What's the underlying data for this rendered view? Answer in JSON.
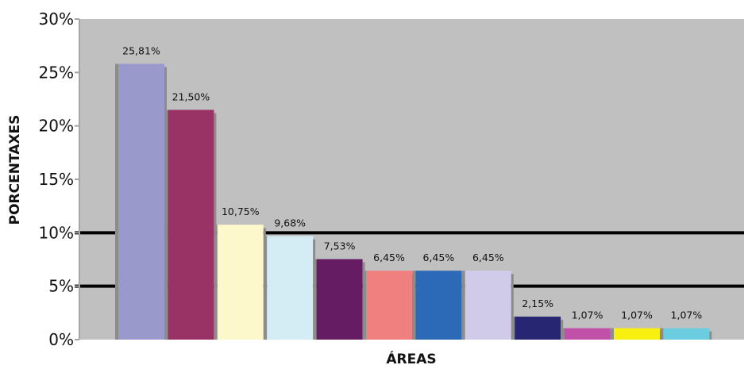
{
  "chart_data": {
    "type": "bar",
    "title": "",
    "xlabel": "ÁREAS",
    "ylabel": "PORCENTAXES",
    "ylim": [
      0,
      30
    ],
    "yticks": [
      0,
      5,
      10,
      15,
      20,
      25,
      30
    ],
    "ytick_labels": [
      "0%",
      "5%",
      "10%",
      "15%",
      "20%",
      "25%",
      "30%"
    ],
    "highlight_lines": [
      5,
      10
    ],
    "background_color": "#c0c0c0",
    "bar_shadow_color": "#8c8c8c",
    "highlight_line_color": "#000000",
    "bars": [
      {
        "value": 25.81,
        "label": "25,81%",
        "color": "#9999cc"
      },
      {
        "value": 21.5,
        "label": "21,50%",
        "color": "#993366"
      },
      {
        "value": 10.75,
        "label": "10,75%",
        "color": "#fdf8cc"
      },
      {
        "value": 9.68,
        "label": "9,68%",
        "color": "#d4edf4"
      },
      {
        "value": 7.53,
        "label": "7,53%",
        "color": "#661c62"
      },
      {
        "value": 6.45,
        "label": "6,45%",
        "color": "#f08080"
      },
      {
        "value": 6.45,
        "label": "6,45%",
        "color": "#2c6ab8"
      },
      {
        "value": 6.45,
        "label": "6,45%",
        "color": "#cfcbe8"
      },
      {
        "value": 2.15,
        "label": "2,15%",
        "color": "#262673"
      },
      {
        "value": 1.07,
        "label": "1,07%",
        "color": "#c050a8"
      },
      {
        "value": 1.07,
        "label": "1,07%",
        "color": "#f8f010"
      },
      {
        "value": 1.07,
        "label": "1,07%",
        "color": "#6ccce0"
      }
    ]
  }
}
